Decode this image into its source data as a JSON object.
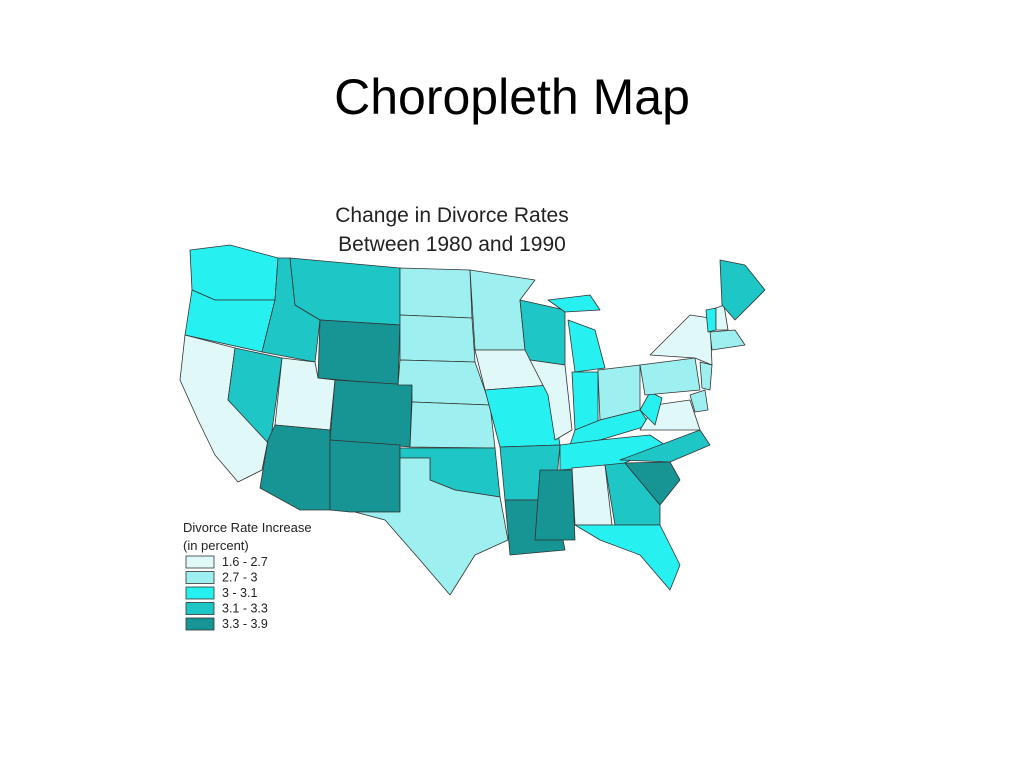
{
  "title": "Choropleth Map",
  "map": {
    "title": [
      "Change in Divorce Rates",
      "Between 1980 and 1990"
    ],
    "legend": {
      "title": [
        "Divorce Rate Increase",
        "(in percent)"
      ],
      "items": [
        {
          "label": "1.6 - 2.7",
          "color": "#e0f8f8"
        },
        {
          "label": "2.7 - 3",
          "color": "#9ef0f0"
        },
        {
          "label": "3 - 3.1",
          "color": "#27f0f0"
        },
        {
          "label": "3.1 - 3.3",
          "color": "#1ec6c6"
        },
        {
          "label": "3.3 - 3.9",
          "color": "#179494"
        }
      ]
    }
  }
}
